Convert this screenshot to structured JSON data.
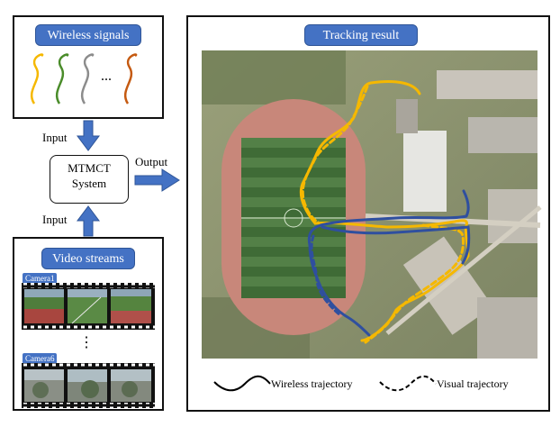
{
  "wireless_panel": {
    "title": "Wireless signals",
    "ellipsis": "..."
  },
  "system": {
    "line1": "MTMCT",
    "line2": "System"
  },
  "arrows": {
    "input_top": "Input",
    "input_bottom": "Input",
    "output": "Output"
  },
  "video_panel": {
    "title": "Video streams",
    "cameras": [
      {
        "label": "Camera1"
      },
      {
        "label": "Camera6"
      }
    ],
    "vertical_ellipsis": "⋮"
  },
  "result_panel": {
    "title": "Tracking result"
  },
  "legend": {
    "wireless": "Wireless trajectory",
    "visual": "Visual trajectory"
  },
  "colors": {
    "wireless_line": "#2f4f9f",
    "visual_line": "#f5b800",
    "pill": "#4472c4"
  },
  "signal_colors": [
    "#f5b800",
    "#4a8c2a",
    "#8c8c8c",
    "#c55a11"
  ]
}
